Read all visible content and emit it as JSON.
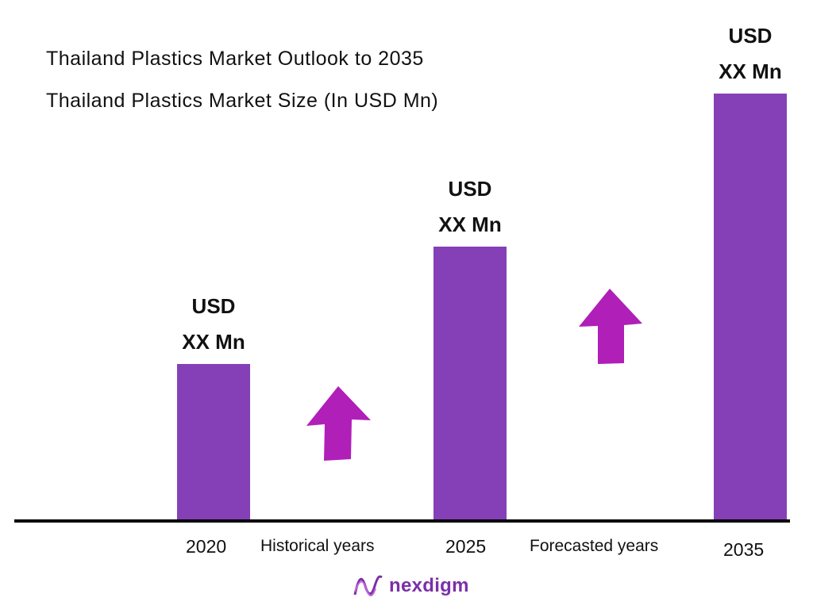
{
  "header": {
    "title": "Thailand Plastics Market Outlook to 2035",
    "subtitle": "Thailand Plastics Market  Size (In USD Mn)"
  },
  "chart_data": {
    "type": "bar",
    "categories": [
      "2020",
      "2025",
      "2035"
    ],
    "values": [
      196,
      344,
      537
    ],
    "data_labels": [
      {
        "line1": "USD",
        "line2": "XX Mn"
      },
      {
        "line1": "USD",
        "line2": "XX Mn"
      },
      {
        "line1": "USD",
        "line2": "XX Mn"
      }
    ],
    "periods": [
      "Historical years",
      "Forecasted years"
    ],
    "bar_color": "#8540b8",
    "arrow_color": "#b01fb8",
    "axis_color": "#000000",
    "grid": false
  },
  "brand": {
    "name": "nexdigm",
    "color": "#7b2fa8",
    "icon": "wave-logo-icon"
  }
}
